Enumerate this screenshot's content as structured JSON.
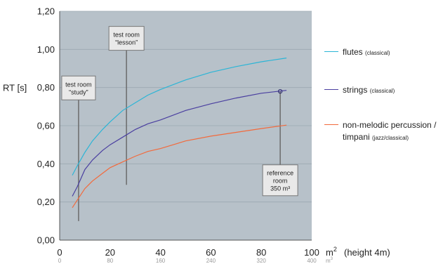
{
  "chart_data": {
    "type": "line",
    "ylabel": "RT [s]",
    "xunit": "m",
    "xunit_exp": "2",
    "xnote": "(height 4m)",
    "xlim": [
      0,
      100
    ],
    "ylim": [
      0,
      1.2
    ],
    "yticks": [
      "0,00",
      "0,20",
      "0,40",
      "0,60",
      "0,80",
      "1,00",
      "1,20"
    ],
    "yvalues": [
      0,
      0.2,
      0.4,
      0.6,
      0.8,
      1.0,
      1.2
    ],
    "xticks": [
      0,
      20,
      40,
      60,
      80,
      100
    ],
    "xticks_labels": [
      "0",
      "20",
      "40",
      "60",
      "80",
      "100"
    ],
    "xticks2": [
      "0",
      "80",
      "160",
      "240",
      "320",
      "400"
    ],
    "xunit2": "m",
    "xunit2_exp": "3",
    "grid": true,
    "series": [
      {
        "name": "flutes",
        "name_note": "(classical)",
        "color": "#2bb5d6",
        "x": [
          5,
          7,
          10,
          13,
          17,
          20,
          25,
          30,
          35,
          40,
          50,
          60,
          70,
          80,
          90
        ],
        "y": [
          0.34,
          0.39,
          0.46,
          0.52,
          0.58,
          0.62,
          0.68,
          0.72,
          0.76,
          0.79,
          0.84,
          0.88,
          0.91,
          0.935,
          0.955
        ]
      },
      {
        "name": "strings",
        "name_note": "(classical)",
        "color": "#4a3fa0",
        "x": [
          5,
          7,
          10,
          13,
          17,
          20,
          25,
          30,
          35,
          40,
          50,
          60,
          70,
          80,
          90
        ],
        "y": [
          0.23,
          0.28,
          0.37,
          0.42,
          0.47,
          0.5,
          0.54,
          0.58,
          0.61,
          0.63,
          0.68,
          0.715,
          0.745,
          0.77,
          0.785
        ]
      },
      {
        "name": "non-melodic percussion /",
        "name2": "timpani",
        "name_note": "(jazz/classical)",
        "color": "#f26a3c",
        "x": [
          5,
          7,
          10,
          13,
          17,
          20,
          25,
          30,
          35,
          40,
          50,
          60,
          70,
          80,
          90
        ],
        "y": [
          0.17,
          0.21,
          0.27,
          0.31,
          0.35,
          0.38,
          0.41,
          0.44,
          0.465,
          0.48,
          0.52,
          0.545,
          0.565,
          0.585,
          0.603
        ]
      }
    ],
    "annotations": [
      {
        "label": [
          "test room",
          "“study”"
        ],
        "x": 7.5,
        "y_top": 0.75,
        "y_bottom": 0.1
      },
      {
        "label": [
          "test room",
          "“lesson”"
        ],
        "x": 26.5,
        "y_top": 1.01,
        "y_bottom": 0.29
      },
      {
        "label": [
          "reference",
          "room",
          "350 m³"
        ],
        "x": 87.5,
        "y_top": 0.78,
        "y_bottom": 0.38,
        "marker_y": 0.78
      }
    ]
  }
}
